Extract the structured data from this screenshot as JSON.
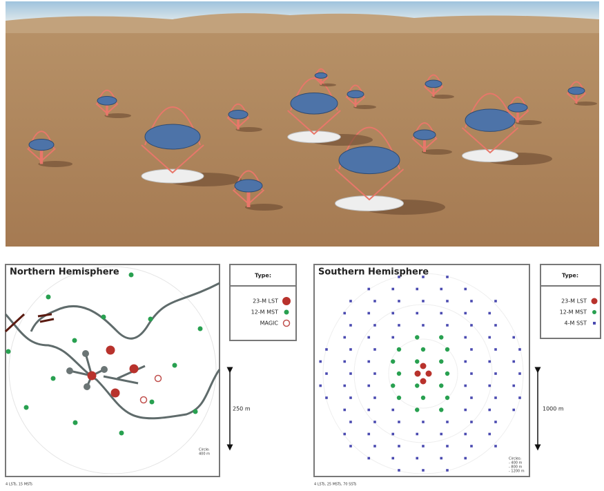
{
  "north": {
    "title": "Northern Hemisphere",
    "legend_title": "Type:",
    "legend": [
      "23-M LST",
      "12-M MST",
      "MAGIC"
    ],
    "scale": "250 m",
    "circle_note": [
      "Circle:",
      "400 m"
    ],
    "caption": "4 LSTs, 15 MSTs"
  },
  "south": {
    "title": "Southern Hemisphere",
    "legend_title": "Type:",
    "legend": [
      "23-M LST",
      "12-M MST",
      "4-M SST"
    ],
    "scale": "1000 m",
    "circle_note": [
      "Circles:",
      "- 400 m",
      "- 800 m",
      "- 1200 m"
    ],
    "caption": "4 LSTs, 25 MSTs, 70 SSTs"
  }
}
